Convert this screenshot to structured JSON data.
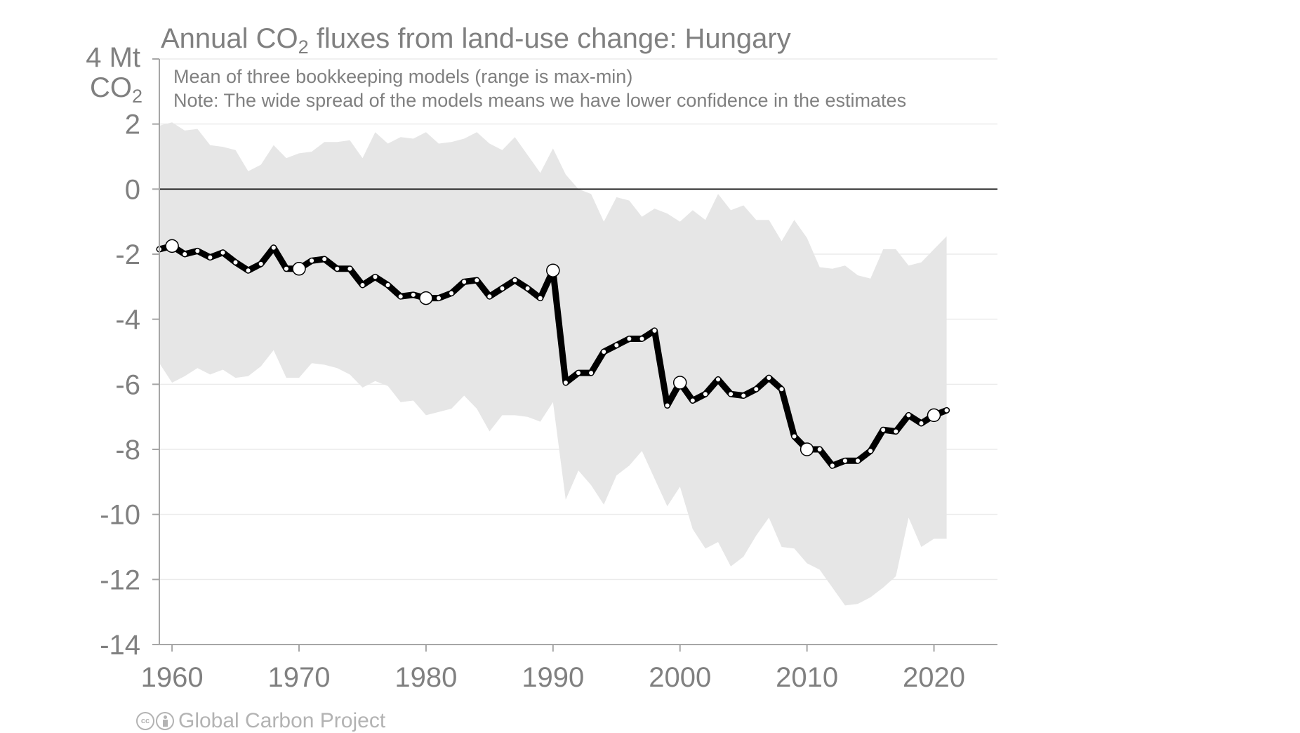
{
  "colors": {
    "band": "#e6e6e6",
    "line": "#000000",
    "text": "#808080",
    "axis": "#a6a6a6",
    "grid": "#ebebeb",
    "zero_line": "#000000"
  },
  "chart_data": {
    "type": "area",
    "title_prefix": "Annual CO",
    "title_sub": "2",
    "title_suffix": " fluxes from land-use change: Hungary",
    "subtitle": "Mean of three bookkeeping models (range is max-min)",
    "note": "Note: The wide spread of the models means we have lower confidence in the estimates",
    "ylabel_line1": "4 Mt",
    "ylabel_line2_prefix": "CO",
    "ylabel_line2_sub": "2",
    "ylim": [
      -14,
      4
    ],
    "xlim": [
      1959,
      2025
    ],
    "yticks": [
      -14,
      -12,
      -10,
      -8,
      -6,
      -4,
      -2,
      0,
      2
    ],
    "ytick_labels": [
      "-14",
      "-12",
      "-10",
      "-8",
      "-6",
      "-4",
      "-2",
      "0",
      "2"
    ],
    "xticks": [
      1960,
      1970,
      1980,
      1990,
      2000,
      2010,
      2020
    ],
    "xtick_labels": [
      "1960",
      "1970",
      "1980",
      "1990",
      "2000",
      "2010",
      "2020"
    ],
    "grid": true,
    "highlight_years": [
      1960,
      1970,
      1980,
      1990,
      2000,
      2010,
      2020
    ],
    "series": [
      {
        "x": [
          1959,
          1960,
          1961,
          1962,
          1963,
          1964,
          1965,
          1966,
          1967,
          1968,
          1969,
          1970,
          1971,
          1972,
          1973,
          1974,
          1975,
          1976,
          1977,
          1978,
          1979,
          1980,
          1981,
          1982,
          1983,
          1984,
          1985,
          1986,
          1987,
          1988,
          1989,
          1990,
          1991,
          1992,
          1993,
          1994,
          1995,
          1996,
          1997,
          1998,
          1999,
          2000,
          2001,
          2002,
          2003,
          2004,
          2005,
          2006,
          2007,
          2008,
          2009,
          2010,
          2011,
          2012,
          2013,
          2014,
          2015,
          2016,
          2017,
          2018,
          2019,
          2020,
          2021
        ],
        "mean": [
          -1.85,
          -1.75,
          -2.0,
          -1.9,
          -2.1,
          -1.95,
          -2.25,
          -2.5,
          -2.3,
          -1.8,
          -2.45,
          -2.45,
          -2.2,
          -2.15,
          -2.45,
          -2.45,
          -2.95,
          -2.7,
          -2.95,
          -3.3,
          -3.25,
          -3.35,
          -3.35,
          -3.2,
          -2.85,
          -2.8,
          -3.3,
          -3.05,
          -2.8,
          -3.05,
          -3.35,
          -2.5,
          -5.95,
          -5.65,
          -5.65,
          -5.0,
          -4.8,
          -4.6,
          -4.6,
          -4.35,
          -6.65,
          -5.95,
          -6.5,
          -6.3,
          -5.85,
          -6.3,
          -6.35,
          -6.15,
          -5.8,
          -6.15,
          -7.6,
          -8.0,
          -8.0,
          -8.5,
          -8.35,
          -8.35,
          -8.05,
          -7.4,
          -7.45,
          -6.95,
          -7.2,
          -6.95,
          -6.8
        ],
        "max": [
          1.95,
          2.05,
          1.8,
          1.85,
          1.35,
          1.3,
          1.2,
          0.55,
          0.75,
          1.35,
          0.95,
          1.1,
          1.15,
          1.45,
          1.45,
          1.5,
          0.95,
          1.75,
          1.4,
          1.6,
          1.55,
          1.75,
          1.4,
          1.45,
          1.55,
          1.75,
          1.4,
          1.2,
          1.6,
          1.05,
          0.5,
          1.25,
          0.45,
          0.0,
          -0.15,
          -1.0,
          -0.25,
          -0.35,
          -0.85,
          -0.6,
          -0.75,
          -1.0,
          -0.65,
          -0.95,
          -0.15,
          -0.65,
          -0.5,
          -0.95,
          -0.95,
          -1.6,
          -0.95,
          -1.5,
          -2.4,
          -2.45,
          -2.35,
          -2.65,
          -2.75,
          -1.85,
          -1.85,
          -2.35,
          -2.25,
          -1.85,
          -1.45
        ],
        "min": [
          -5.35,
          -5.95,
          -5.75,
          -5.5,
          -5.7,
          -5.55,
          -5.8,
          -5.75,
          -5.45,
          -4.95,
          -5.8,
          -5.8,
          -5.35,
          -5.4,
          -5.5,
          -5.7,
          -6.1,
          -5.9,
          -6.05,
          -6.55,
          -6.5,
          -6.95,
          -6.85,
          -6.75,
          -6.35,
          -6.75,
          -7.45,
          -6.95,
          -6.95,
          -7.0,
          -7.15,
          -6.55,
          -9.55,
          -8.65,
          -9.1,
          -9.7,
          -8.8,
          -8.5,
          -8.05,
          -8.9,
          -9.75,
          -9.15,
          -10.45,
          -11.05,
          -10.85,
          -11.6,
          -11.3,
          -10.65,
          -10.1,
          -11.0,
          -11.05,
          -11.5,
          -11.7,
          -12.25,
          -12.8,
          -12.75,
          -12.55,
          -12.25,
          -11.9,
          -10.1,
          -11.0,
          -10.75,
          -10.75
        ]
      }
    ]
  },
  "footer": {
    "cc_label": "cc",
    "credit": "Global Carbon Project"
  }
}
